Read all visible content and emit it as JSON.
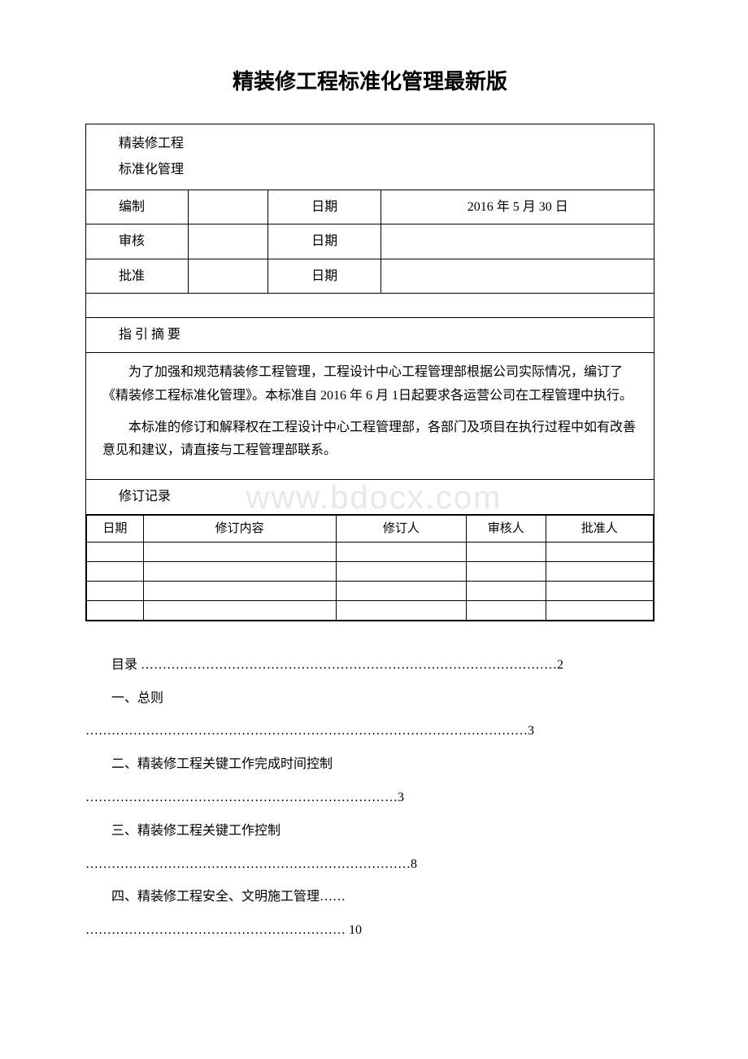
{
  "title": "精装修工程标准化管理最新版",
  "header": {
    "line1": "精装修工程",
    "line2": "标准化管理"
  },
  "meta": {
    "compile_label": "编制",
    "date_label": "日期",
    "compile_date": "2016 年 5 月 30 日",
    "review_label": "审核",
    "approve_label": "批准"
  },
  "summary": {
    "heading": "指 引 摘 要",
    "para1": "为了加强和规范精装修工程管理，工程设计中心工程管理部根据公司实际情况，编订了《精装修工程标准化管理》。本标准自 2016 年 6 月 1日起要求各运营公司在工程管理中执行。",
    "para2": "本标准的修订和解释权在工程设计中心工程管理部，各部门及项目在执行过程中如有改善意见和建议，请直接与工程管理部联系。"
  },
  "revision": {
    "heading": "修订记录",
    "col1": "日期",
    "col2": "修订内容",
    "col3": "修订人",
    "col4": "审核人",
    "col5": "批准人"
  },
  "toc": {
    "line1": "目录 ……………………………………………………………………………………2",
    "line2_label": "一、总则",
    "line2_dots": "…………………………………………………………………………………………3",
    "line3_label": "二、精装修工程关键工作完成时间控制",
    "line3_dots": "………………………………………………………………3",
    "line4_label": "三、精装修工程关键工作控制",
    "line4_dots": "…………………………………………………………………8",
    "line5_label": "四、精装修工程安全、文明施工管理……",
    "line5_dots": "…………………………………………………… 10"
  },
  "watermark": "www.bdocx.com"
}
